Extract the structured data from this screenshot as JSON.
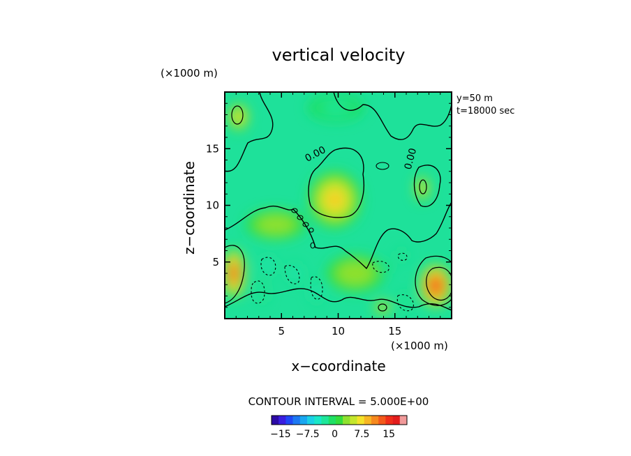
{
  "chart_data": {
    "type": "heatmap",
    "title": "vertical velocity",
    "xlabel": "x−coordinate",
    "ylabel": "z−coordinate",
    "x_unit": "(×1000 m)",
    "y_unit": "(×1000 m)",
    "xlim": [
      0,
      20
    ],
    "ylim": [
      0,
      20
    ],
    "x_ticks": [
      5,
      10,
      15
    ],
    "y_ticks": [
      5,
      10,
      15
    ],
    "x_tick_labels": [
      "5",
      "10",
      "15"
    ],
    "y_tick_labels": [
      "5",
      "10",
      "15"
    ],
    "info": [
      "y=50 m",
      "t=18000 sec"
    ],
    "contour_interval_text": "CONTOUR INTERVAL = 5.000E+00",
    "contour_labels": [
      {
        "text": "0.00",
        "x": 8.0,
        "y": 14.5,
        "rot": -28
      },
      {
        "text": "0.00",
        "x": 16.4,
        "y": 14.1,
        "rot": -75
      }
    ],
    "colorbar": {
      "colors": [
        "#2c0aa6",
        "#3a1ee0",
        "#1f48f5",
        "#1c78f2",
        "#19a7f0",
        "#1bd0e6",
        "#1ae7c8",
        "#1ee69a",
        "#1fe065",
        "#33dd3d",
        "#8fe12f",
        "#c4e62c",
        "#f4e22a",
        "#f7b624",
        "#f6891e",
        "#f35a1b",
        "#ef2e1a",
        "#e31d1d",
        "#f19a9a"
      ],
      "tick_labels": [
        "−15",
        "−7.5",
        "0",
        "7.5",
        "15"
      ],
      "tick_values": [
        -15,
        -7.5,
        0,
        7.5,
        15
      ],
      "range": [
        -17.5,
        20
      ]
    },
    "features": [
      {
        "kind": "updraft",
        "level": 17,
        "x": 18.6,
        "y": 2.9,
        "rx": 1.4,
        "ry": 1.9
      },
      {
        "kind": "updraft",
        "level": 15,
        "x": 0.8,
        "y": 4.0,
        "rx": 1.0,
        "ry": 2.2
      },
      {
        "kind": "updraft",
        "level": 9,
        "x": 9.7,
        "y": 10.5,
        "rx": 2.3,
        "ry": 2.5
      },
      {
        "kind": "updraft",
        "level": 9,
        "x": 17.4,
        "y": 11.5,
        "rx": 0.6,
        "ry": 1.1
      },
      {
        "kind": "updraft",
        "level": 9,
        "x": 13.9,
        "y": 1.0,
        "rx": 0.7,
        "ry": 0.6
      },
      {
        "kind": "updraft",
        "level": 8,
        "x": 1.2,
        "y": 17.8,
        "rx": 0.9,
        "ry": 1.2
      },
      {
        "kind": "downdraft",
        "level": -6,
        "x": 3.8,
        "y": 4.7,
        "rx": 0.8,
        "ry": 0.8
      },
      {
        "kind": "downdraft",
        "level": -5,
        "x": 3.3,
        "y": 2.3,
        "rx": 0.5,
        "ry": 0.9
      },
      {
        "kind": "downdraft",
        "level": -6,
        "x": 6.2,
        "y": 4.0,
        "rx": 0.7,
        "ry": 0.9
      },
      {
        "kind": "downdraft",
        "level": -6,
        "x": 8.1,
        "y": 2.4,
        "rx": 0.6,
        "ry": 1.0
      },
      {
        "kind": "downdraft",
        "level": -5,
        "x": 13.9,
        "y": 4.5,
        "rx": 0.8,
        "ry": 0.6
      },
      {
        "kind": "downdraft",
        "level": -5,
        "x": 15.9,
        "y": 1.5,
        "rx": 0.7,
        "ry": 0.8
      },
      {
        "kind": "downdraft",
        "level": -4,
        "x": 15.6,
        "y": 5.6,
        "rx": 0.5,
        "ry": 0.5
      },
      {
        "kind": "weak",
        "level": -2,
        "x": 9.8,
        "y": 18.6,
        "rx": 2.5,
        "ry": 1.2
      },
      {
        "kind": "weak",
        "level": 4,
        "x": 4.5,
        "y": 8.3,
        "rx": 2.6,
        "ry": 1.3
      },
      {
        "kind": "weak",
        "level": 4,
        "x": 11.5,
        "y": 4.0,
        "rx": 2.5,
        "ry": 1.6
      }
    ]
  }
}
